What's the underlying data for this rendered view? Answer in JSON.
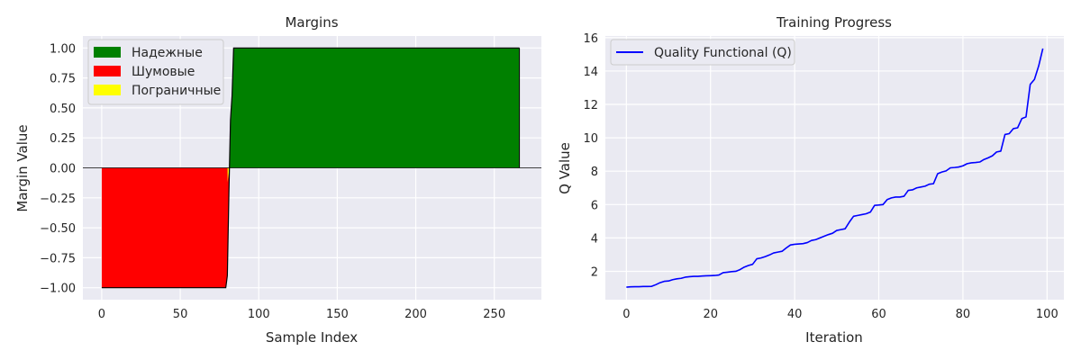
{
  "chart_data": [
    {
      "type": "area",
      "title": "Margins",
      "xlabel": "Sample Index",
      "ylabel": "Margin Value",
      "xlim": [
        -12,
        280
      ],
      "ylim": [
        -1.1,
        1.1
      ],
      "xticks": [
        0,
        50,
        100,
        150,
        200,
        250
      ],
      "yticks": [
        -1.0,
        -0.75,
        -0.5,
        -0.25,
        0.0,
        0.25,
        0.5,
        0.75,
        1.0
      ],
      "ytick_labels": [
        "−1.00",
        "−0.75",
        "−0.50",
        "−0.25",
        "0.00",
        "0.25",
        "0.50",
        "0.75",
        "1.00"
      ],
      "grid": true,
      "legend_position": "top-left",
      "hline": 0,
      "series": [
        {
          "name": "Надежные",
          "color": "#008000"
        },
        {
          "name": "Шумовые",
          "color": "#ff0000"
        },
        {
          "name": "Пограничные",
          "color": "#ffff00"
        }
      ],
      "line_color": "#000000",
      "x": [
        0,
        79,
        80,
        81,
        82,
        83,
        84,
        85,
        86,
        266
      ],
      "values": [
        -1.0,
        -1.0,
        -0.9,
        -0.2,
        0.4,
        0.6,
        1.0,
        1.0,
        1.0,
        1.0
      ]
    },
    {
      "type": "line",
      "title": "Training Progress",
      "xlabel": "Iteration",
      "ylabel": "Q Value",
      "xlim": [
        -5,
        104
      ],
      "ylim": [
        0.3,
        16.1
      ],
      "xticks": [
        0,
        20,
        40,
        60,
        80,
        100
      ],
      "yticks": [
        2,
        4,
        6,
        8,
        10,
        12,
        14,
        16
      ],
      "grid": true,
      "legend_position": "top-left",
      "series": [
        {
          "name": "Quality Functional (Q)",
          "color": "#0000ff",
          "x": [
            0,
            1,
            2,
            3,
            4,
            5,
            6,
            7,
            8,
            9,
            10,
            11,
            12,
            13,
            14,
            15,
            16,
            17,
            18,
            19,
            20,
            21,
            22,
            23,
            24,
            25,
            26,
            27,
            28,
            29,
            30,
            31,
            32,
            33,
            34,
            35,
            36,
            37,
            38,
            39,
            40,
            41,
            42,
            43,
            44,
            45,
            46,
            47,
            48,
            49,
            50,
            51,
            52,
            53,
            54,
            55,
            56,
            57,
            58,
            59,
            60,
            61,
            62,
            63,
            64,
            65,
            66,
            67,
            68,
            69,
            70,
            71,
            72,
            73,
            74,
            75,
            76,
            77,
            78,
            79,
            80,
            81,
            82,
            83,
            84,
            85,
            86,
            87,
            88,
            89,
            90,
            91,
            92,
            93,
            94,
            95,
            96,
            97,
            98,
            99
          ],
          "values": [
            1.05,
            1.07,
            1.08,
            1.08,
            1.09,
            1.09,
            1.1,
            1.2,
            1.32,
            1.4,
            1.42,
            1.5,
            1.55,
            1.58,
            1.65,
            1.68,
            1.7,
            1.7,
            1.72,
            1.73,
            1.74,
            1.75,
            1.78,
            1.92,
            1.95,
            1.98,
            2.0,
            2.1,
            2.25,
            2.35,
            2.42,
            2.75,
            2.8,
            2.88,
            2.98,
            3.1,
            3.15,
            3.2,
            3.4,
            3.58,
            3.62,
            3.64,
            3.66,
            3.72,
            3.85,
            3.9,
            4.0,
            4.1,
            4.2,
            4.28,
            4.45,
            4.5,
            4.55,
            4.95,
            5.3,
            5.35,
            5.4,
            5.45,
            5.55,
            5.95,
            5.97,
            6.0,
            6.3,
            6.4,
            6.45,
            6.45,
            6.5,
            6.85,
            6.88,
            7.0,
            7.05,
            7.1,
            7.22,
            7.25,
            7.85,
            7.95,
            8.02,
            8.2,
            8.22,
            8.25,
            8.32,
            8.45,
            8.5,
            8.52,
            8.55,
            8.7,
            8.8,
            8.92,
            9.15,
            9.2,
            10.2,
            10.25,
            10.55,
            10.6,
            11.15,
            11.25,
            13.2,
            13.5,
            14.3,
            15.35
          ]
        }
      ]
    }
  ]
}
